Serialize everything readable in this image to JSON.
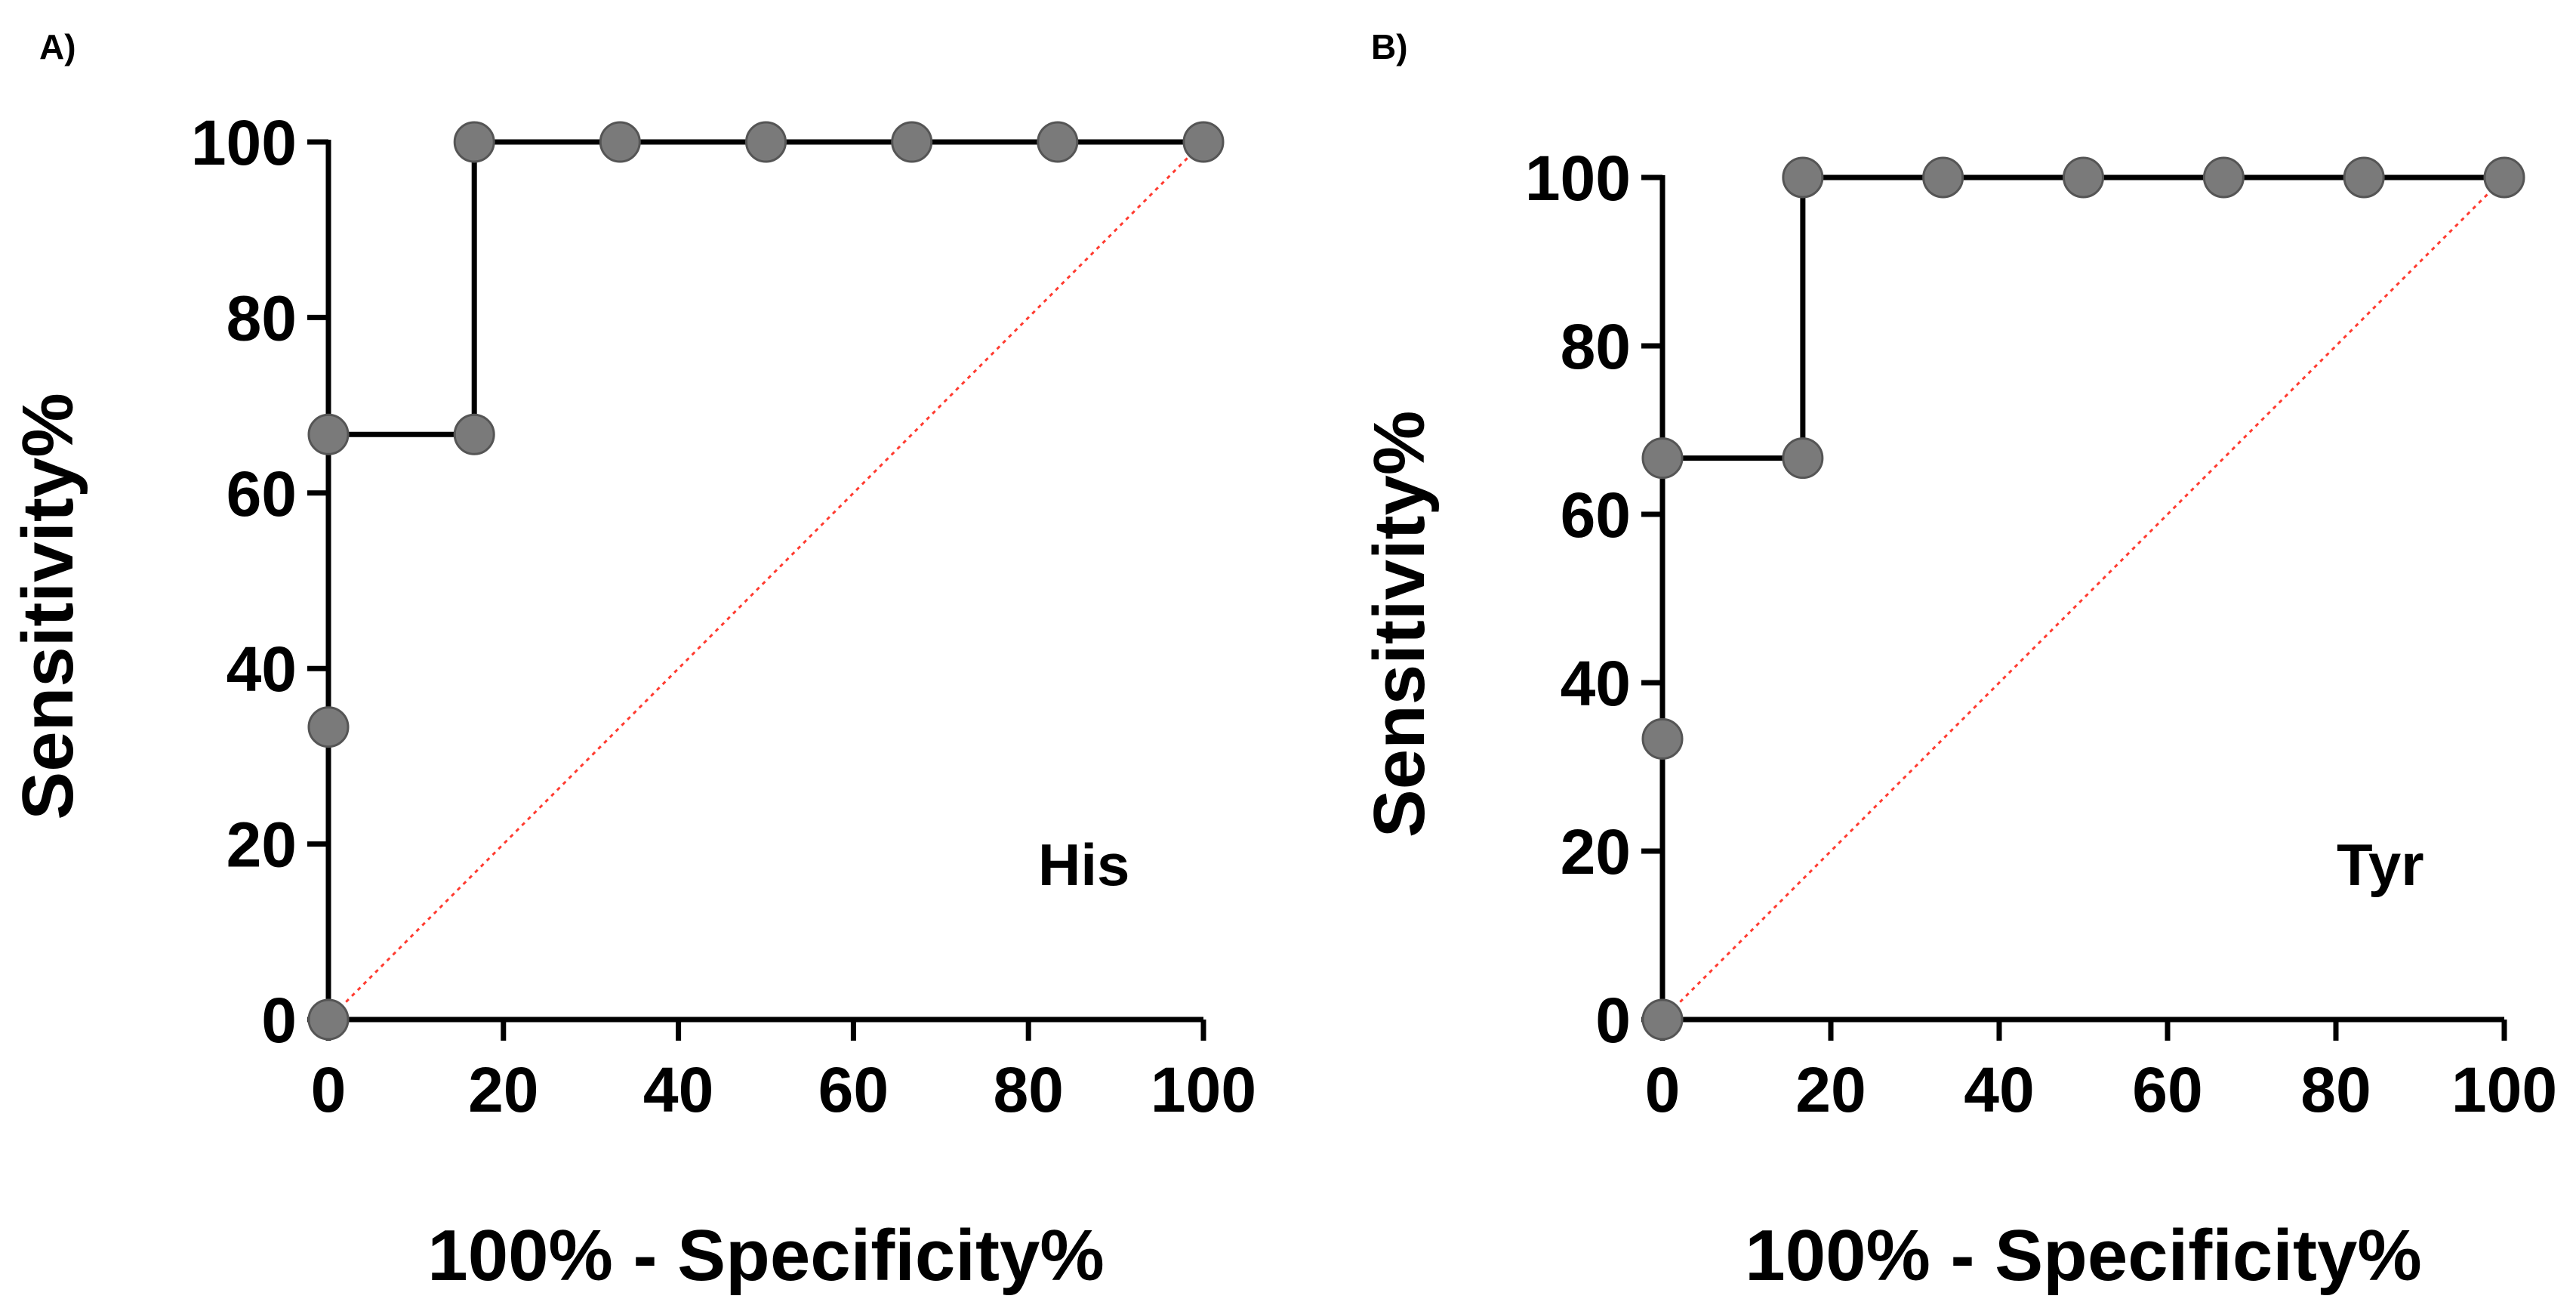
{
  "chart_data": [
    {
      "panel_label": "A)",
      "type": "line",
      "xlabel": "100% - Specificity%",
      "ylabel": "Sensitivity%",
      "annotation": "His",
      "xlim": [
        0,
        100
      ],
      "ylim": [
        0,
        100
      ],
      "xticks": [
        "0",
        "20",
        "40",
        "60",
        "80",
        "100"
      ],
      "yticks": [
        "0",
        "20",
        "40",
        "60",
        "80",
        "100"
      ],
      "grid": false,
      "series": [
        {
          "name": "ROC",
          "step": true,
          "x": [
            0,
            0,
            0,
            16.67,
            16.67,
            33.33,
            50,
            66.67,
            83.33,
            100
          ],
          "y": [
            0,
            33.33,
            66.67,
            66.67,
            100,
            100,
            100,
            100,
            100,
            100
          ]
        },
        {
          "name": "Reference line",
          "style": "dotted",
          "x": [
            0,
            100
          ],
          "y": [
            0,
            100
          ]
        }
      ]
    },
    {
      "panel_label": "B)",
      "type": "line",
      "xlabel": "100% - Specificity%",
      "ylabel": "Sensitivity%",
      "annotation": "Tyr",
      "xlim": [
        0,
        100
      ],
      "ylim": [
        0,
        100
      ],
      "xticks": [
        "0",
        "20",
        "40",
        "60",
        "80",
        "100"
      ],
      "yticks": [
        "0",
        "20",
        "40",
        "60",
        "80",
        "100"
      ],
      "grid": false,
      "series": [
        {
          "name": "ROC",
          "step": true,
          "x": [
            0,
            0,
            0,
            16.67,
            16.67,
            33.33,
            50,
            66.67,
            83.33,
            100
          ],
          "y": [
            0,
            33.33,
            66.67,
            66.67,
            100,
            100,
            100,
            100,
            100,
            100
          ]
        },
        {
          "name": "Reference line",
          "style": "dotted",
          "x": [
            0,
            100
          ],
          "y": [
            0,
            100
          ]
        }
      ]
    }
  ],
  "colors": {
    "roc_line": "#000000",
    "marker_fill": "#7a7a7a",
    "marker_stroke": "#555555",
    "reference_line": "#ff3b30",
    "axis": "#000000"
  }
}
